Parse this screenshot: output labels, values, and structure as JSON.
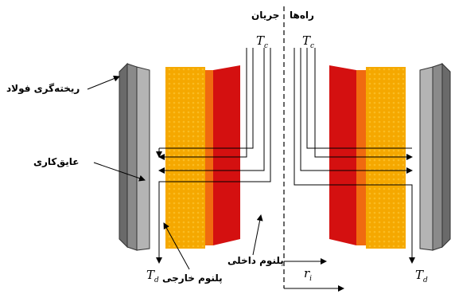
{
  "labels": {
    "flow_right": "جریان",
    "flow_left": "راه‌ها",
    "steel_casting": "ریخته‌گری فولاد",
    "insulation": "عایق‌کاری",
    "inner_plenum": "پلنوم داخلی",
    "outer_plenum": "پلنوم خارجی"
  },
  "symbols": {
    "tc_left": {
      "base": "T",
      "sub": "c"
    },
    "tc_right": {
      "base": "T",
      "sub": "c"
    },
    "td_left": {
      "base": "T",
      "sub": "d"
    },
    "td_right": {
      "base": "T",
      "sub": "d"
    },
    "ri": {
      "base": "r",
      "sub": "i"
    }
  },
  "colors": {
    "steel_dark": "#6a6a6a",
    "steel_light": "#b4b4b4",
    "fuel_orange": "#f5a800",
    "fuel_mid": "#f06a10",
    "fuel_red": "#d41010",
    "line": "#000000"
  }
}
